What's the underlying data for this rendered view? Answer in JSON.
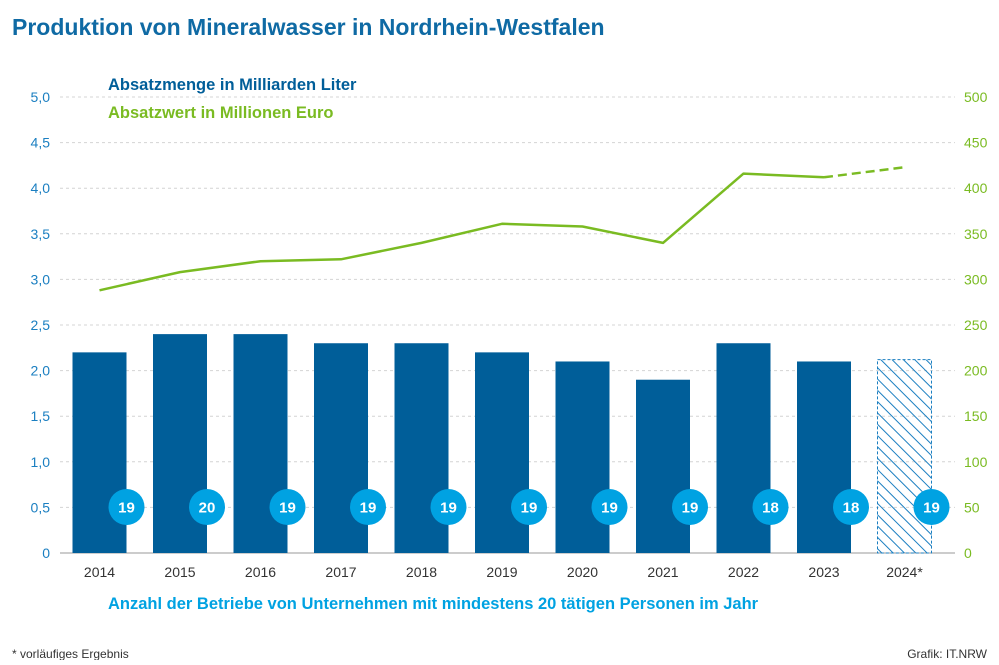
{
  "title": "Produktion von Mineralwasser in Nordrhein-Westfalen",
  "footnote": "*  vorläufiges Ergebnis",
  "credit": "Grafik: IT.NRW",
  "colors": {
    "title": "#0f6aa4",
    "bar": "#005e99",
    "line": "#7abb22",
    "badge": "#00a2e2",
    "left_axis": "#1b7fc1",
    "right_axis": "#7abb22",
    "grid": "#d4d4d4",
    "text": "#333333",
    "caption": "#00a2e2"
  },
  "chart_data": {
    "type": "bar+line",
    "categories": [
      "2014",
      "2015",
      "2016",
      "2017",
      "2018",
      "2019",
      "2020",
      "2021",
      "2022",
      "2023",
      "2024*"
    ],
    "series": [
      {
        "name": "Absatzmenge in Milliarden Liter",
        "type": "bar",
        "axis": "left",
        "values": [
          2.2,
          2.4,
          2.4,
          2.3,
          2.3,
          2.2,
          2.1,
          1.9,
          2.3,
          2.1,
          2.12
        ],
        "provisional_index": 10
      },
      {
        "name": "Absatzwert in Millionen Euro",
        "type": "line",
        "axis": "right",
        "values": [
          288,
          308,
          320,
          322,
          340,
          361,
          358,
          340,
          416,
          412,
          423
        ],
        "dashed_from_index": 9
      }
    ],
    "badges": {
      "caption": "Anzahl der Betriebe von Unternehmen mit mindestens 20 tätigen Personen im Jahr",
      "values": [
        19,
        20,
        19,
        19,
        19,
        19,
        19,
        19,
        18,
        18,
        19
      ]
    },
    "left_axis": {
      "ylim": [
        0,
        5
      ],
      "ticks": [
        "0",
        "0,5",
        "1,0",
        "1,5",
        "2,0",
        "2,5",
        "3,0",
        "3,5",
        "4,0",
        "4,5",
        "5,0"
      ]
    },
    "right_axis": {
      "ylim": [
        0,
        500
      ],
      "ticks": [
        "0",
        "50",
        "100",
        "150",
        "200",
        "250",
        "300",
        "350",
        "400",
        "450",
        "500"
      ]
    },
    "grid": "horizontal dashed",
    "legend": "top-left"
  }
}
